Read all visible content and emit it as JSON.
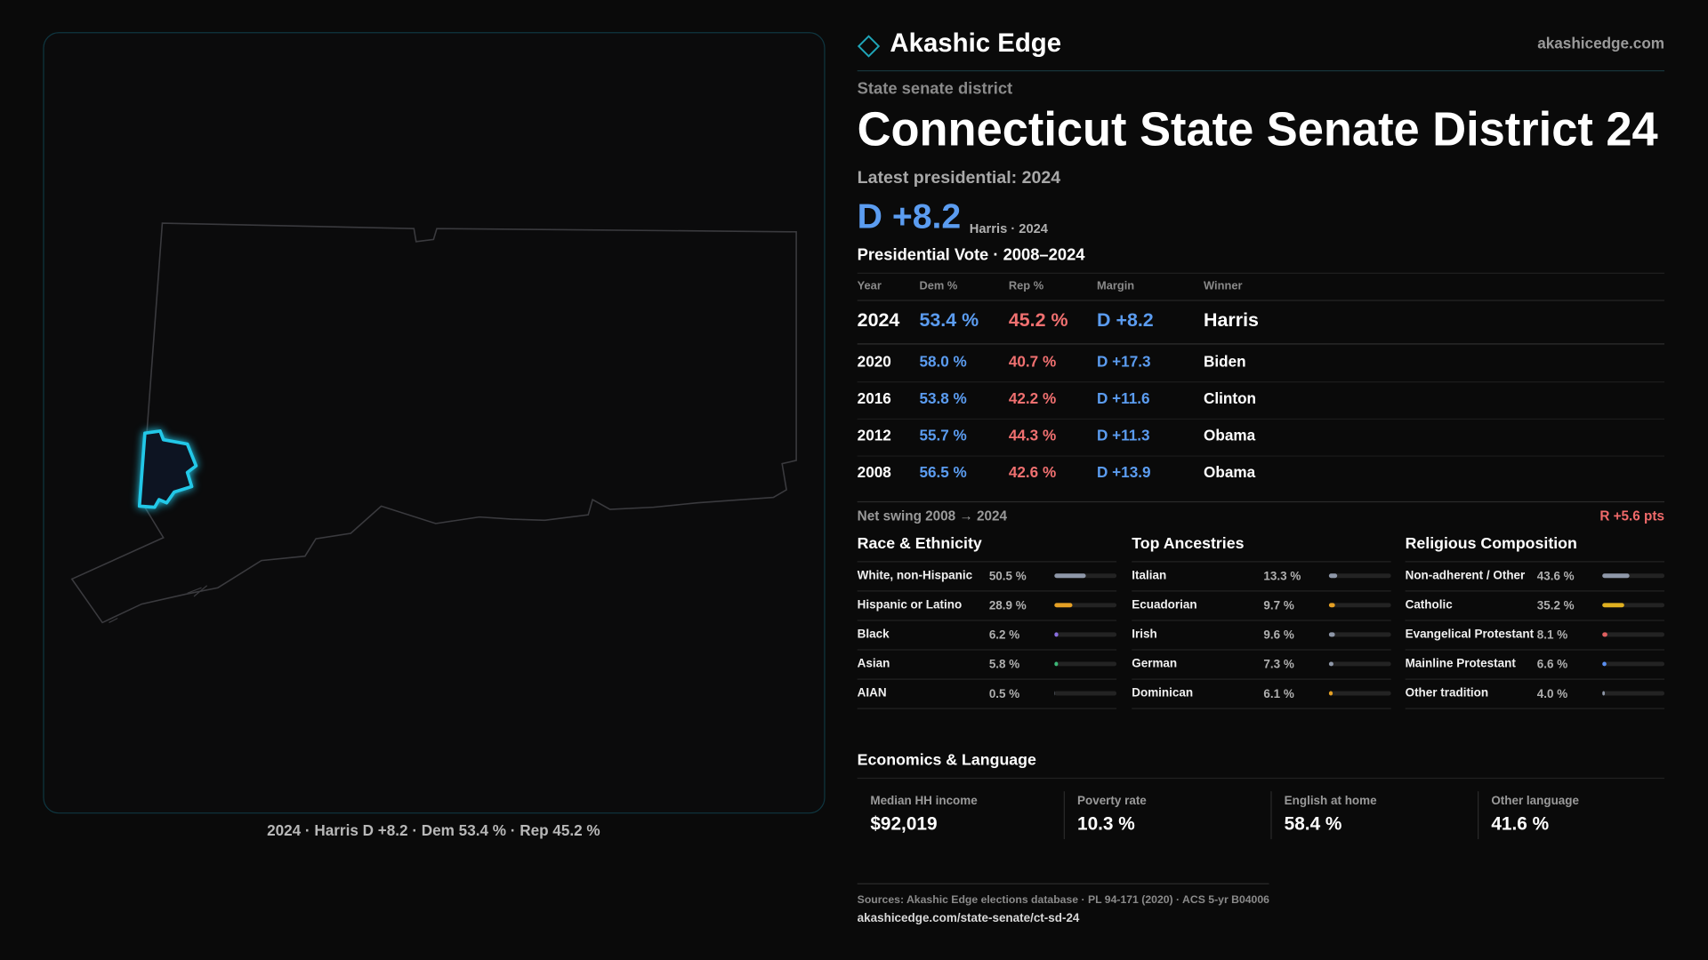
{
  "header": {
    "brand": "Akashic Edge",
    "site": "akashicedge.com"
  },
  "district": {
    "kind": "State senate district",
    "name": "Connecticut State Senate District 24",
    "latest_label": "Latest presidential: 2024",
    "margin": "D +8.2",
    "margin_note": "Harris · 2024"
  },
  "map": {
    "caption": "2024 · Harris D +8.2 · Dem 53.4 % · Rep 45.2 %"
  },
  "vote_table": {
    "title": "Presidential Vote · 2008–2024",
    "columns": [
      "Year",
      "Dem %",
      "Rep %",
      "Margin",
      "Winner"
    ],
    "rows": [
      [
        "2024",
        "53.4 %",
        "45.2 %",
        "D +8.2",
        "Harris"
      ],
      [
        "2020",
        "58.0 %",
        "40.7 %",
        "D +17.3",
        "Biden"
      ],
      [
        "2016",
        "53.8 %",
        "42.2 %",
        "D +11.6",
        "Clinton"
      ],
      [
        "2012",
        "55.7 %",
        "44.3 %",
        "D +11.3",
        "Obama"
      ],
      [
        "2008",
        "56.5 %",
        "42.6 %",
        "D +13.9",
        "Obama"
      ]
    ]
  },
  "swing": {
    "label": "Net swing 2008 → 2024",
    "value": "R +5.6 pts"
  },
  "sections": [
    {
      "title": "Race & Ethnicity",
      "rows": [
        {
          "name": "White, non-Hispanic",
          "value": 50.5,
          "label": "50.5 %",
          "color": "#8e97a8"
        },
        {
          "name": "Hispanic or Latino",
          "value": 28.9,
          "label": "28.9 %",
          "color": "#e5a024"
        },
        {
          "name": "Black",
          "value": 6.2,
          "label": "6.2 %",
          "color": "#8a6fe0"
        },
        {
          "name": "Asian",
          "value": 5.8,
          "label": "5.8 %",
          "color": "#3cb878"
        },
        {
          "name": "AIAN",
          "value": 0.5,
          "label": "0.5 %",
          "color": "#8e97a8"
        }
      ]
    },
    {
      "title": "Top Ancestries",
      "rows": [
        {
          "name": "Italian",
          "value": 13.3,
          "label": "13.3 %",
          "color": "#8e97a8"
        },
        {
          "name": "Ecuadorian",
          "value": 9.7,
          "label": "9.7 %",
          "color": "#e5a024"
        },
        {
          "name": "Irish",
          "value": 9.6,
          "label": "9.6 %",
          "color": "#8e97a8"
        },
        {
          "name": "German",
          "value": 7.3,
          "label": "7.3 %",
          "color": "#8e97a8"
        },
        {
          "name": "Dominican",
          "value": 6.1,
          "label": "6.1 %",
          "color": "#e5a024"
        }
      ]
    },
    {
      "title": "Religious Composition",
      "rows": [
        {
          "name": "Non-adherent / Other",
          "value": 43.6,
          "label": "43.6 %",
          "color": "#8e97a8"
        },
        {
          "name": "Catholic",
          "value": 35.2,
          "label": "35.2 %",
          "color": "#e0b020"
        },
        {
          "name": "Evangelical Protestant",
          "value": 8.1,
          "label": "8.1 %",
          "color": "#e06060"
        },
        {
          "name": "Mainline Protestant",
          "value": 6.6,
          "label": "6.6 %",
          "color": "#5b8ff0"
        },
        {
          "name": "Other tradition",
          "value": 4.0,
          "label": "4.0 %",
          "color": "#8e97a8"
        }
      ]
    }
  ],
  "economics": {
    "title": "Economics & Language",
    "stats": [
      {
        "label": "Median HH income",
        "value": "$92,019"
      },
      {
        "label": "Poverty rate",
        "value": "10.3 %"
      },
      {
        "label": "English at home",
        "value": "58.4 %"
      },
      {
        "label": "Other language",
        "value": "41.6 %"
      }
    ]
  },
  "footer": {
    "sources": "Sources: Akashic Edge elections database · PL 94-171 (2020) · ACS 5-yr B04006",
    "url": "akashicedge.com/state-senate/ct-sd-24"
  }
}
